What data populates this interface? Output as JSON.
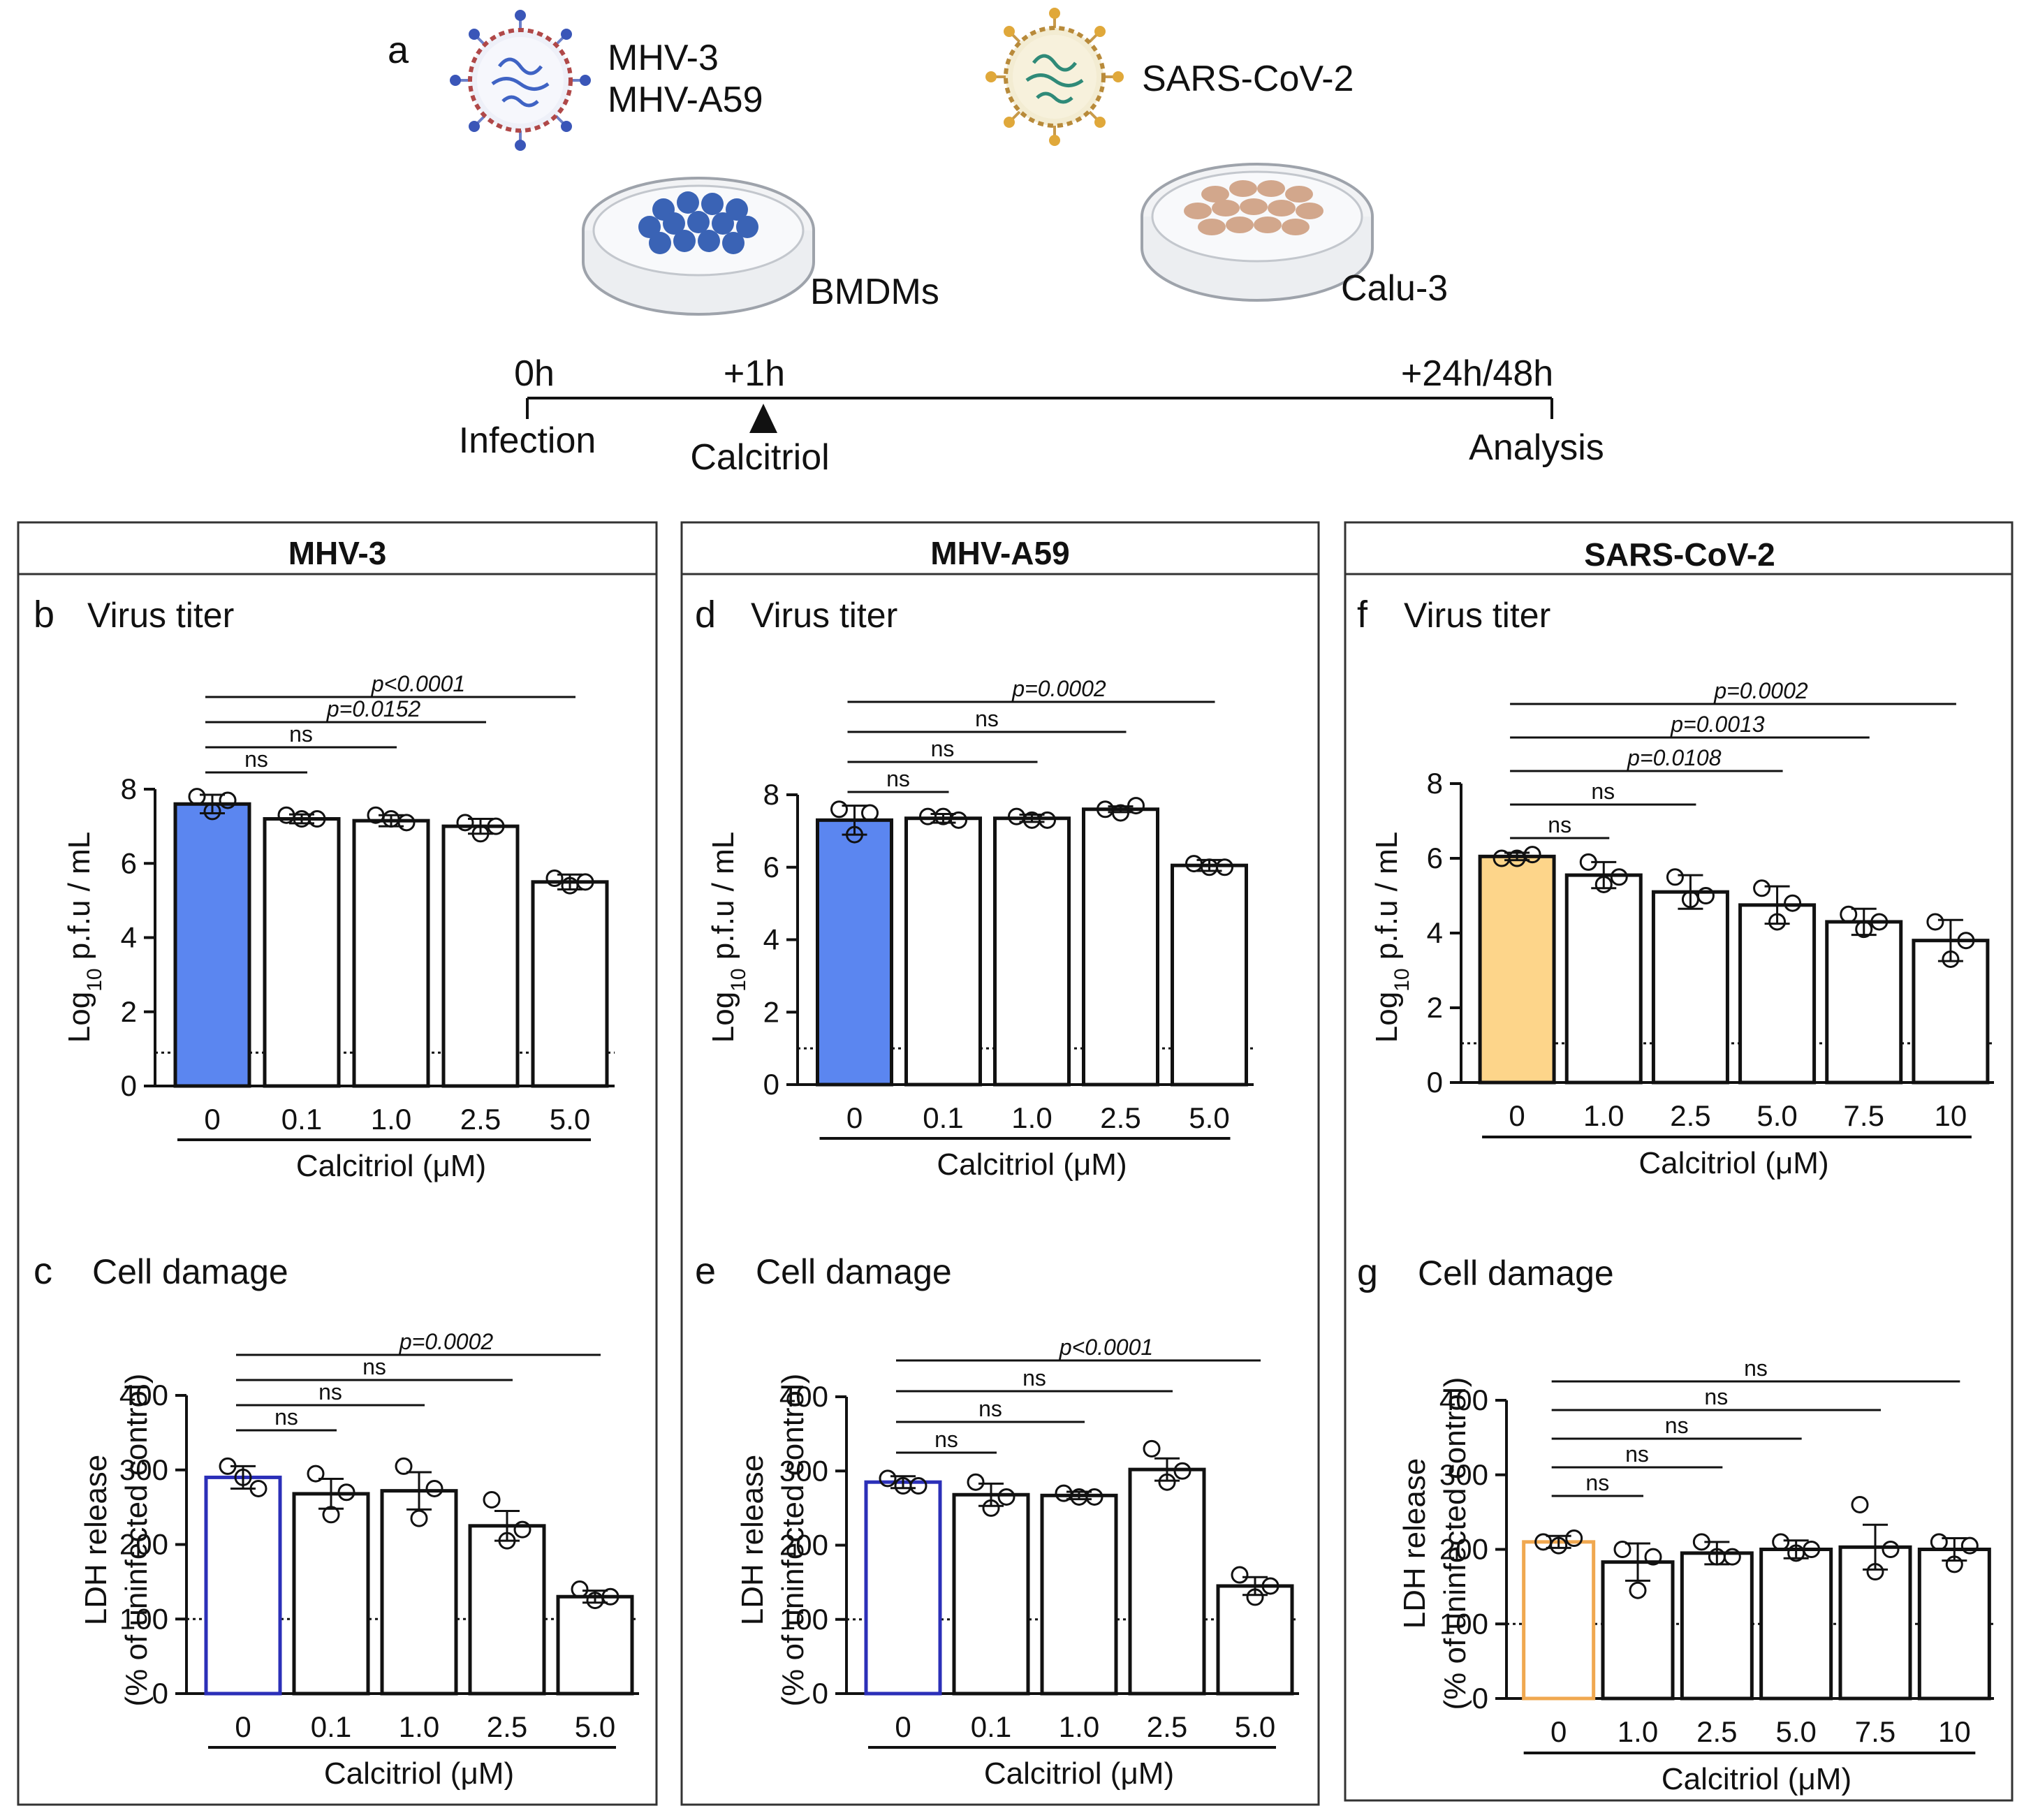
{
  "schematic": {
    "panel_label": "a",
    "virus_left_1": "MHV-3",
    "virus_left_2": "MHV-A59",
    "virus_right": "SARS-CoV-2",
    "cells_left": "BMDMs",
    "cells_right": "Calu-3",
    "timeline": {
      "t0": "0h",
      "t1": "+1h",
      "t2": "+24h/48h",
      "e0": "Infection",
      "e1": "Calcitriol",
      "e2": "Analysis"
    }
  },
  "columns": [
    {
      "header": "MHV-3",
      "top_label": "b",
      "bottom_label": "c"
    },
    {
      "header": "MHV-A59",
      "top_label": "d",
      "bottom_label": "e"
    },
    {
      "header": "SARS-CoV-2",
      "top_label": "f",
      "bottom_label": "g"
    }
  ],
  "colors": {
    "mhv_fill": "#5b86f0",
    "mhv_outline": "#2b2fb8",
    "sars_fill": "#fdd58a",
    "sars_outline": "#f0a850",
    "bar_default": "#ffffff",
    "ink": "#111111"
  },
  "chart_data": [
    {
      "id": "b",
      "type": "bar",
      "title": "Virus titer",
      "ylabel_main": "Log",
      "ylabel_sub": "10",
      "ylabel_rest": " p.f.u / mL",
      "xlabel": "Calcitriol (μM)",
      "categories": [
        "0",
        "0.1",
        "1.0",
        "2.5",
        "5.0"
      ],
      "values": [
        7.6,
        7.2,
        7.15,
        7.0,
        5.5
      ],
      "errors": [
        0.25,
        0.12,
        0.15,
        0.2,
        0.2
      ],
      "points": [
        [
          7.8,
          7.7,
          7.4
        ],
        [
          7.3,
          7.2,
          7.2
        ],
        [
          7.3,
          7.1,
          7.2
        ],
        [
          7.1,
          7.0,
          6.8
        ],
        [
          5.6,
          5.5,
          5.4
        ]
      ],
      "ylim": [
        0,
        8
      ],
      "yticks": [
        "0",
        "2",
        "4",
        "6",
        "8"
      ],
      "yticks_values": [
        0,
        2,
        4,
        6,
        8
      ],
      "dotted_line": 0.9,
      "highlight": "mhv",
      "comparisons": [
        {
          "to": 1,
          "label": "ns",
          "italic": false
        },
        {
          "to": 2,
          "label": "ns",
          "italic": false
        },
        {
          "to": 3,
          "label": "p=0.0152",
          "italic": true
        },
        {
          "to": 4,
          "label": "p<0.0001",
          "italic": true
        }
      ]
    },
    {
      "id": "c",
      "type": "bar",
      "title": "Cell damage",
      "ylabel_main": "LDH release",
      "ylabel_line2": "(% of uninfected control)",
      "xlabel": "Calcitriol (μM)",
      "categories": [
        "0",
        "0.1",
        "1.0",
        "2.5",
        "5.0"
      ],
      "values": [
        290,
        268,
        272,
        225,
        130
      ],
      "errors": [
        15,
        20,
        25,
        20,
        8
      ],
      "points": [
        [
          305,
          275,
          290
        ],
        [
          295,
          270,
          240
        ],
        [
          305,
          275,
          235
        ],
        [
          260,
          220,
          205
        ],
        [
          140,
          130,
          125
        ]
      ],
      "ylim": [
        0,
        400
      ],
      "yticks": [
        "0",
        "100",
        "200",
        "300",
        "400"
      ],
      "yticks_values": [
        0,
        100,
        200,
        300,
        400
      ],
      "dotted_line": 100,
      "highlight_outline": "mhv",
      "comparisons": [
        {
          "to": 1,
          "label": "ns",
          "italic": false
        },
        {
          "to": 2,
          "label": "ns",
          "italic": false
        },
        {
          "to": 3,
          "label": "ns",
          "italic": false
        },
        {
          "to": 4,
          "label": "p=0.0002",
          "italic": true
        }
      ]
    },
    {
      "id": "d",
      "type": "bar",
      "title": "Virus titer",
      "ylabel_main": "Log",
      "ylabel_sub": "10",
      "ylabel_rest": " p.f.u / mL",
      "xlabel": "Calcitriol (μM)",
      "categories": [
        "0",
        "0.1",
        "1.0",
        "2.5",
        "5.0"
      ],
      "values": [
        7.3,
        7.35,
        7.35,
        7.6,
        6.05
      ],
      "errors": [
        0.4,
        0.12,
        0.1,
        0.08,
        0.15
      ],
      "points": [
        [
          7.6,
          7.5,
          6.9
        ],
        [
          7.4,
          7.3,
          7.4
        ],
        [
          7.4,
          7.3,
          7.3
        ],
        [
          7.6,
          7.7,
          7.5
        ],
        [
          6.1,
          6.0,
          6.0
        ]
      ],
      "ylim": [
        0,
        8
      ],
      "yticks": [
        "0",
        "2",
        "4",
        "6",
        "8"
      ],
      "yticks_values": [
        0,
        2,
        4,
        6,
        8
      ],
      "dotted_line": 1.0,
      "highlight": "mhv",
      "comparisons": [
        {
          "to": 1,
          "label": "ns",
          "italic": false
        },
        {
          "to": 2,
          "label": "ns",
          "italic": false
        },
        {
          "to": 3,
          "label": "ns",
          "italic": false
        },
        {
          "to": 4,
          "label": "p=0.0002",
          "italic": true
        }
      ]
    },
    {
      "id": "e",
      "type": "bar",
      "title": "Cell damage",
      "ylabel_main": "LDH release",
      "ylabel_line2": "(% of uninfected control)",
      "xlabel": "Calcitriol (μM)",
      "categories": [
        "0",
        "0.1",
        "1.0",
        "2.5",
        "5.0"
      ],
      "values": [
        285,
        268,
        267,
        302,
        145
      ],
      "errors": [
        8,
        15,
        5,
        15,
        12
      ],
      "points": [
        [
          290,
          280,
          280
        ],
        [
          285,
          265,
          250
        ],
        [
          270,
          265,
          265
        ],
        [
          330,
          300,
          285
        ],
        [
          160,
          145,
          130
        ]
      ],
      "ylim": [
        0,
        400
      ],
      "yticks": [
        "0",
        "100",
        "200",
        "300",
        "400"
      ],
      "yticks_values": [
        0,
        100,
        200,
        300,
        400
      ],
      "dotted_line": 100,
      "highlight_outline": "mhv",
      "comparisons": [
        {
          "to": 1,
          "label": "ns",
          "italic": false
        },
        {
          "to": 2,
          "label": "ns",
          "italic": false
        },
        {
          "to": 3,
          "label": "ns",
          "italic": false
        },
        {
          "to": 4,
          "label": "p<0.0001",
          "italic": true
        }
      ]
    },
    {
      "id": "f",
      "type": "bar",
      "title": "Virus titer",
      "ylabel_main": "Log",
      "ylabel_sub": "10",
      "ylabel_rest": " p.f.u / mL",
      "xlabel": "Calcitriol (μM)",
      "categories": [
        "0",
        "1.0",
        "2.5",
        "5.0",
        "7.5",
        "10"
      ],
      "values": [
        6.05,
        5.55,
        5.1,
        4.75,
        4.3,
        3.8
      ],
      "errors": [
        0.1,
        0.35,
        0.45,
        0.5,
        0.35,
        0.55
      ],
      "points": [
        [
          6.0,
          6.1,
          6.0
        ],
        [
          5.9,
          5.5,
          5.3
        ],
        [
          5.5,
          5.0,
          4.9
        ],
        [
          5.2,
          4.8,
          4.3
        ],
        [
          4.5,
          4.3,
          4.1
        ],
        [
          4.3,
          3.8,
          3.3
        ]
      ],
      "ylim": [
        0,
        8
      ],
      "yticks": [
        "0",
        "2",
        "4",
        "6",
        "8"
      ],
      "yticks_values": [
        0,
        2,
        4,
        6,
        8
      ],
      "dotted_line": 1.05,
      "highlight": "sars",
      "comparisons": [
        {
          "to": 1,
          "label": "ns",
          "italic": false
        },
        {
          "to": 2,
          "label": "ns",
          "italic": false
        },
        {
          "to": 3,
          "label": "p=0.0108",
          "italic": true
        },
        {
          "to": 4,
          "label": "p=0.0013",
          "italic": true
        },
        {
          "to": 5,
          "label": "p=0.0002",
          "italic": true
        }
      ]
    },
    {
      "id": "g",
      "type": "bar",
      "title": "Cell damage",
      "ylabel_main": "LDH release",
      "ylabel_line2": "(% of uninfected control)",
      "xlabel": "Calcitriol (μM)",
      "categories": [
        "0",
        "1.0",
        "2.5",
        "5.0",
        "7.5",
        "10"
      ],
      "values": [
        210,
        183,
        195,
        200,
        203,
        200
      ],
      "errors": [
        8,
        25,
        15,
        12,
        30,
        15
      ],
      "points": [
        [
          210,
          215,
          205
        ],
        [
          200,
          190,
          145
        ],
        [
          210,
          190,
          190
        ],
        [
          210,
          200,
          195
        ],
        [
          260,
          200,
          170
        ],
        [
          210,
          205,
          180
        ]
      ],
      "ylim": [
        0,
        400
      ],
      "yticks": [
        "0",
        "100",
        "200",
        "300",
        "400"
      ],
      "yticks_values": [
        0,
        100,
        200,
        300,
        400
      ],
      "dotted_line": 100,
      "highlight_outline": "sars",
      "comparisons": [
        {
          "to": 1,
          "label": "ns",
          "italic": false
        },
        {
          "to": 2,
          "label": "ns",
          "italic": false
        },
        {
          "to": 3,
          "label": "ns",
          "italic": false
        },
        {
          "to": 4,
          "label": "ns",
          "italic": false
        },
        {
          "to": 5,
          "label": "ns",
          "italic": false
        }
      ]
    }
  ]
}
